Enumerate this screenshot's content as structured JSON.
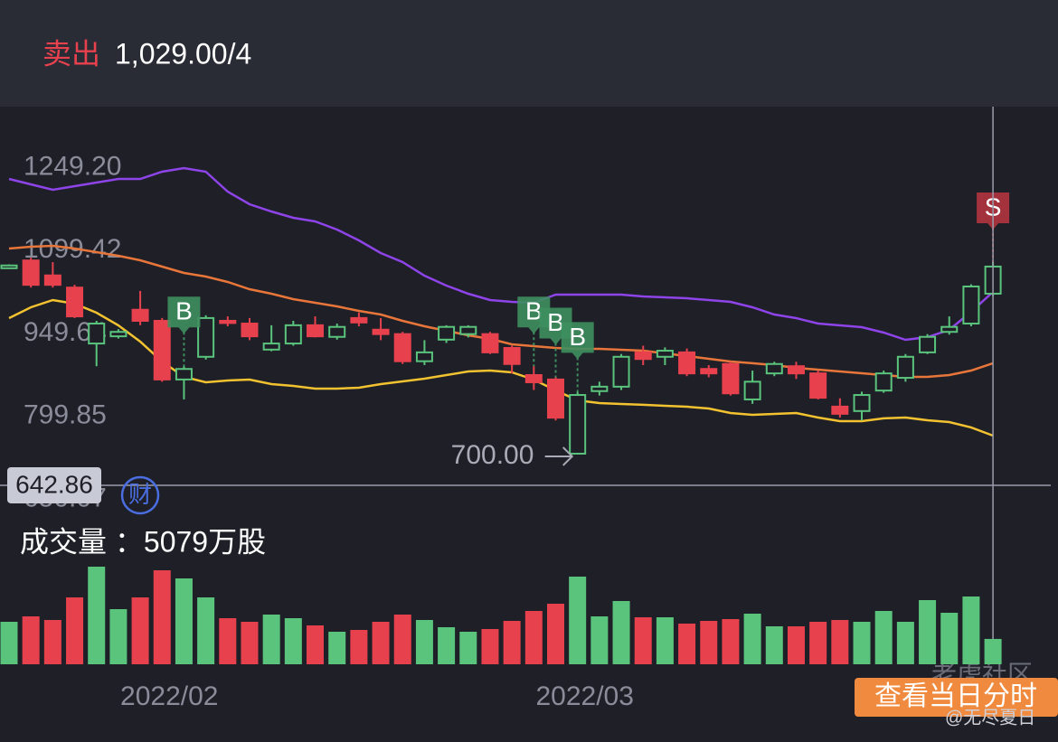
{
  "header": {
    "action": "卖出",
    "quote": "1,029.00/4"
  },
  "chart_data": {
    "type": "candlestick",
    "categories": [
      null,
      null,
      null,
      null,
      null,
      null,
      null,
      "2022/02",
      null,
      null,
      null,
      null,
      null,
      null,
      null,
      null,
      null,
      null,
      null,
      null,
      null,
      null,
      null,
      null,
      null,
      null,
      "2022/03",
      null,
      null,
      null,
      null,
      null,
      null,
      null,
      null,
      null,
      null,
      null,
      null,
      null,
      null,
      null,
      null,
      null,
      null,
      null
    ],
    "open": [
      1035,
      1049,
      1022,
      1000,
      899,
      912,
      960,
      940,
      834,
      875,
      940,
      935,
      888,
      899,
      932,
      911,
      945,
      924,
      916,
      867,
      906,
      916,
      916,
      891,
      842,
      834,
      700,
      813,
      821,
      883,
      875,
      883,
      853,
      862,
      798,
      845,
      858,
      845,
      785,
      777,
      814,
      837,
      883,
      920,
      935,
      989
    ],
    "high": [
      1042,
      1054,
      1046,
      1005,
      940,
      925,
      994,
      945,
      858,
      950,
      948,
      945,
      932,
      940,
      948,
      935,
      955,
      945,
      920,
      905,
      932,
      932,
      920,
      895,
      858,
      838,
      812,
      830,
      880,
      895,
      892,
      890,
      860,
      866,
      850,
      866,
      866,
      850,
      800,
      812,
      850,
      880,
      916,
      948,
      1006,
      1046
    ],
    "low": [
      1034,
      1000,
      1000,
      945,
      858,
      908,
      932,
      830,
      798,
      870,
      930,
      905,
      885,
      895,
      910,
      906,
      930,
      905,
      862,
      860,
      900,
      910,
      880,
      845,
      815,
      760,
      700,
      805,
      815,
      860,
      860,
      840,
      838,
      805,
      790,
      840,
      835,
      798,
      765,
      760,
      810,
      830,
      880,
      915,
      930,
      985
    ],
    "close": [
      1040,
      1005,
      1005,
      948,
      935,
      920,
      940,
      834,
      853,
      945,
      936,
      912,
      899,
      932,
      912,
      929,
      937,
      916,
      867,
      883,
      929,
      929,
      883,
      862,
      829,
      765,
      806,
      821,
      875,
      871,
      886,
      845,
      845,
      809,
      830,
      862,
      845,
      801,
      772,
      806,
      845,
      875,
      911,
      929,
      1002,
      1038
    ],
    "up_color": "#5ac47d",
    "down_color": "#e8414e",
    "ylim": [
      637.9,
      1326.9
    ],
    "yticks": [
      650.07,
      799.85,
      949.64,
      1099.42,
      {
        "value": 1249.2,
        "label": "1249.20"
      }
    ],
    "lines": [
      {
        "color": "#8e44e8",
        "values": [
          1196.3,
          1186.5,
          1176.7,
          1183.3,
          1189.8,
          1196.3,
          1196.3,
          1209.4,
          1215.9,
          1209.4,
          1173.5,
          1150.6,
          1137.5,
          1126.1,
          1119.6,
          1104.9,
          1085.3,
          1062.4,
          1046.1,
          1021.6,
          1003.7,
          989.0,
          977.5,
          974.3,
          972.6,
          987.3,
          987.3,
          987.3,
          987.3,
          984.1,
          982.4,
          980.8,
          977.5,
          974.3,
          964.5,
          951.4,
          944.9,
          935.1,
          931.8,
          928.6,
          918.8,
          905.7,
          910.6,
          923.7,
          956.3,
          992.2
        ]
      },
      {
        "color": "#e8763a",
        "values": [
          1070.6,
          1073.9,
          1075.5,
          1070.6,
          1064.1,
          1057.5,
          1049.4,
          1037.9,
          1026.5,
          1020.0,
          1010.2,
          997.1,
          989.0,
          979.2,
          972.6,
          966.1,
          957.9,
          951.4,
          940.0,
          930.2,
          922.0,
          913.9,
          907.3,
          897.5,
          894.3,
          891.0,
          889.4,
          889.4,
          887.7,
          886.1,
          881.2,
          876.3,
          871.4,
          866.5,
          863.3,
          860.0,
          855.1,
          851.8,
          848.6,
          845.3,
          842.0,
          838.8,
          838.8,
          842.0,
          850.2,
          863.3
        ]
      },
      {
        "color": "#f2c230",
        "values": [
          944.9,
          964.5,
          977.5,
          971.0,
          954.7,
          931.8,
          902.4,
          866.5,
          838.8,
          829.0,
          832.2,
          833.9,
          825.7,
          822.4,
          817.5,
          817.5,
          819.2,
          825.7,
          830.6,
          835.5,
          842.0,
          848.6,
          850.2,
          846.9,
          833.9,
          814.3,
          796.3,
          791.4,
          789.8,
          788.2,
          786.5,
          784.9,
          781.6,
          773.4,
          770.2,
          771.8,
          773.4,
          765.3,
          758.8,
          758.8,
          763.7,
          765.3,
          760.4,
          757.1,
          747.4,
          732.6
        ]
      }
    ],
    "signals": [
      {
        "index": 8,
        "label": "B",
        "color": "#3e8f5f"
      },
      {
        "index": 24,
        "label": "B",
        "color": "#3e8f5f"
      },
      {
        "index": 25,
        "label": "B",
        "color": "#3e8f5f"
      },
      {
        "index": 26,
        "label": "B",
        "color": "#3e8f5f"
      },
      {
        "index": 45,
        "label": "S",
        "color": "#b3343f"
      }
    ],
    "low_annotation": {
      "index": 26,
      "value": 700,
      "label": "700.00"
    },
    "crosshair": {
      "index": 45,
      "value": 642.86
    },
    "badge": "财",
    "volume": {
      "label": "成交量 ：5079万股",
      "ylim": [
        0,
        20815
      ],
      "values": [
        8507,
        9593,
        8869,
        13394,
        19548,
        11041,
        13394,
        18824,
        17195,
        13394,
        9231,
        8507,
        9955,
        9231,
        7783,
        6516,
        6878,
        8507,
        9955,
        8869,
        7421,
        6516,
        7059,
        8688,
        10679,
        12127,
        17557,
        9593,
        12670,
        9412,
        9412,
        8145,
        8688,
        9050,
        10136,
        7602,
        7602,
        8507,
        8869,
        8507,
        10679,
        8507,
        12851,
        10317,
        13575,
        5079
      ]
    }
  },
  "button": "查看当日分时",
  "watermark": {
    "brand": "老虎社区",
    "author": "@无尽夏日"
  }
}
